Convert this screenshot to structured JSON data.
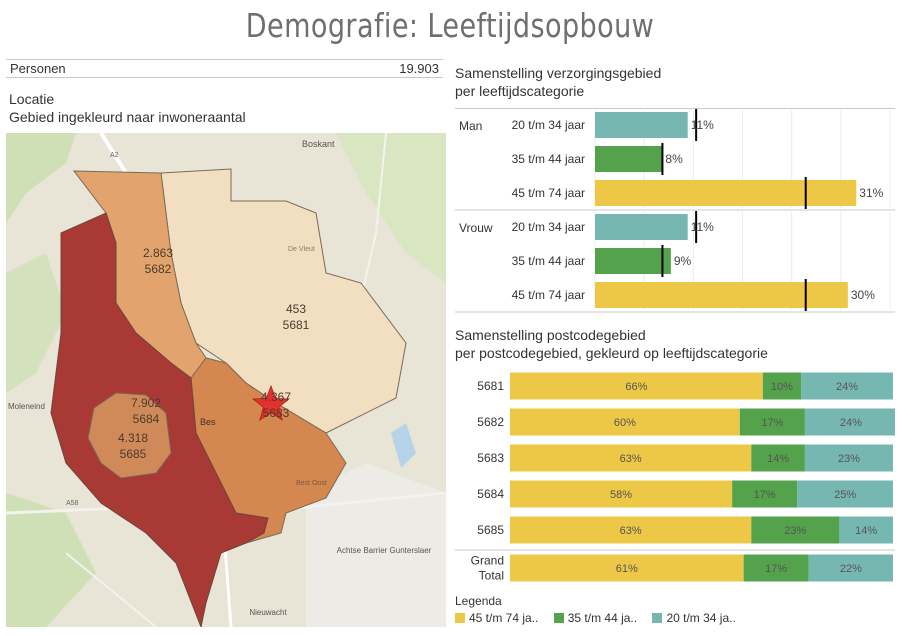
{
  "title": "Demografie: Leeftijdsopbouw",
  "kpi": {
    "label": "Personen",
    "value": "19.903"
  },
  "map": {
    "heading": "Locatie",
    "subheading": "Gebied ingekleurd naar inwoneraantal",
    "regions": [
      {
        "count": "2.863",
        "postcode": "5682"
      },
      {
        "count": "453",
        "postcode": "5681"
      },
      {
        "count": "4.367",
        "postcode": "5683"
      },
      {
        "count": "7.902",
        "postcode": "5684"
      },
      {
        "count": "4.318",
        "postcode": "5685"
      }
    ],
    "places": [
      "Boskant",
      "Bes",
      "Moleneind",
      "Achtse Barrier Gunterslaer",
      "Nieuwacht",
      "A2",
      "A58",
      "Best Oost",
      "De Vleut"
    ]
  },
  "colors": {
    "age_45_74": "#ecc846",
    "age_35_44": "#54a24b",
    "age_20_34": "#76b7b2",
    "marker": "#000000"
  },
  "chart_data": [
    {
      "type": "bar",
      "title": "Samenstelling verzorgingsgebied\nper leeftijdscategorie",
      "orientation": "horizontal",
      "groups": [
        {
          "name": "Man",
          "categories": [
            "20 t/m 34 jaar",
            "35 t/m 44 jaar",
            "45 t/m 74 jaar"
          ],
          "values": [
            11,
            8,
            31
          ],
          "labels": [
            "11%",
            "8%",
            "31%"
          ],
          "reference": [
            12,
            8,
            25
          ]
        },
        {
          "name": "Vrouw",
          "categories": [
            "20 t/m 34 jaar",
            "35 t/m 44 jaar",
            "45 t/m 74 jaar"
          ],
          "values": [
            11,
            9,
            30
          ],
          "labels": [
            "11%",
            "9%",
            "30%"
          ],
          "reference": [
            12,
            8,
            25
          ]
        }
      ],
      "xlim": [
        0,
        35
      ],
      "grid": true
    },
    {
      "type": "bar",
      "stacked": true,
      "orientation": "horizontal",
      "title": "Samenstelling postcodegebied\nper postcodegebied, gekleurd op leeftijdscategorie",
      "categories": [
        "5681",
        "5682",
        "5683",
        "5684",
        "5685",
        "Grand\nTotal"
      ],
      "series": [
        {
          "name": "45 t/m 74 ja..",
          "values": [
            66,
            60,
            63,
            58,
            63,
            61
          ],
          "labels": [
            "66%",
            "60%",
            "63%",
            "58%",
            "63%",
            "61%"
          ]
        },
        {
          "name": "35 t/m 44 ja..",
          "values": [
            10,
            17,
            14,
            17,
            23,
            17
          ],
          "labels": [
            "10%",
            "17%",
            "14%",
            "17%",
            "23%",
            "17%"
          ]
        },
        {
          "name": "20 t/m 34 ja..",
          "values": [
            24,
            24,
            23,
            25,
            14,
            22
          ],
          "labels": [
            "24%",
            "24%",
            "23%",
            "25%",
            "14%",
            "22%"
          ]
        }
      ],
      "xlim": [
        0,
        100
      ],
      "legend_title": "Legenda",
      "legend_position": "bottom-left"
    }
  ]
}
